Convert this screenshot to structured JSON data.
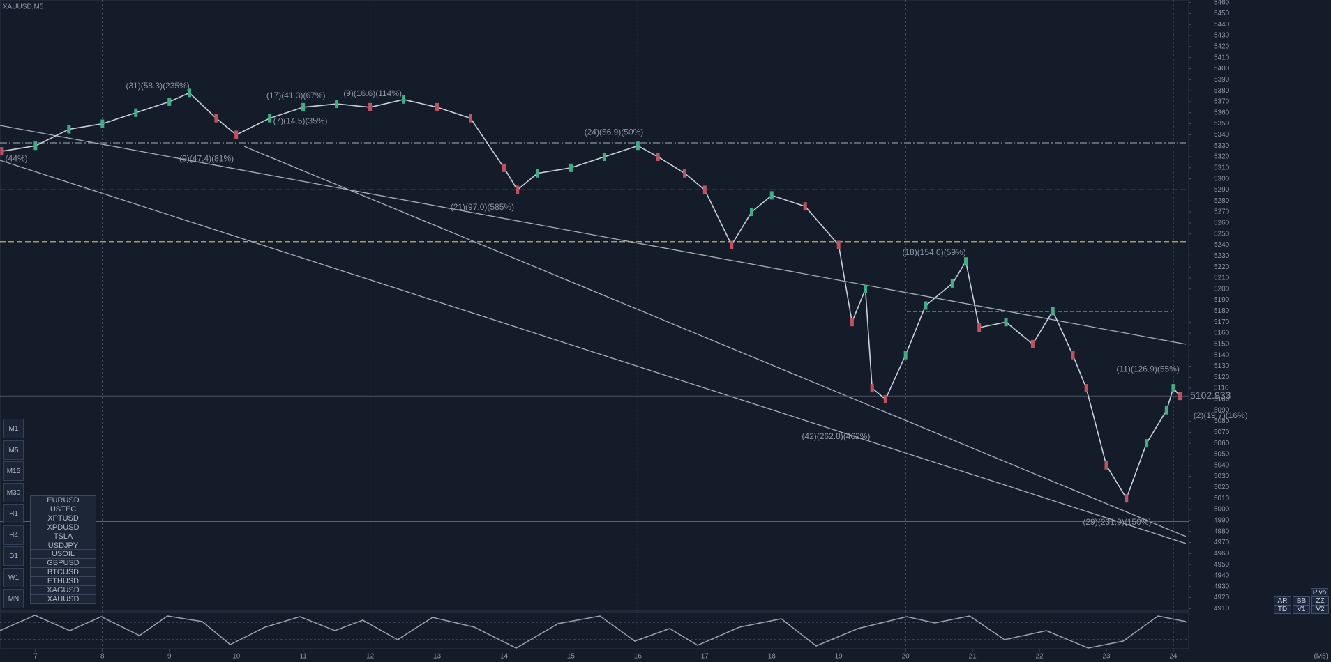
{
  "header": {
    "symbol": "XAUUSD,M5",
    "timeframe_tag": "(M5)"
  },
  "chart_data": {
    "type": "line",
    "series": [
      {
        "name": "XAUUSD",
        "color": "#c9d1dc",
        "x": [
          6.5,
          7.0,
          7.5,
          8.0,
          8.5,
          9.0,
          9.3,
          9.7,
          10.0,
          10.5,
          11.0,
          11.5,
          12.0,
          12.5,
          13.0,
          13.5,
          14.0,
          14.2,
          14.5,
          15.0,
          15.5,
          16.0,
          16.3,
          16.7,
          17.0,
          17.4,
          17.7,
          18.0,
          18.5,
          19.0,
          19.2,
          19.4,
          19.5,
          19.7,
          20.0,
          20.3,
          20.7,
          20.9,
          21.1,
          21.5,
          21.9,
          22.2,
          22.5,
          22.7,
          23.0,
          23.3,
          23.6,
          23.9,
          24.0,
          24.1
        ],
        "values": [
          5325,
          5330,
          5345,
          5350,
          5360,
          5370,
          5378,
          5355,
          5340,
          5355,
          5365,
          5368,
          5365,
          5372,
          5365,
          5355,
          5310,
          5290,
          5305,
          5310,
          5320,
          5330,
          5320,
          5305,
          5290,
          5240,
          5270,
          5285,
          5275,
          5240,
          5170,
          5200,
          5110,
          5100,
          5140,
          5185,
          5205,
          5225,
          5165,
          5170,
          5150,
          5180,
          5140,
          5110,
          5040,
          5010,
          5060,
          5090,
          5110,
          5103
        ]
      }
    ],
    "current_price": {
      "value": 5102.933,
      "label": "5102.933"
    },
    "levels": [
      {
        "value": 5290,
        "color": "#d4c73a"
      },
      {
        "value": 5243,
        "color": "#b9b86a"
      },
      {
        "value": 4989,
        "color": "#c0384b"
      }
    ],
    "vlines": [
      8,
      12,
      16,
      20,
      24
    ],
    "xlim": [
      6.47,
      24.23
    ],
    "xticks": [
      7,
      8,
      9,
      10,
      11,
      12,
      13,
      14,
      15,
      16,
      17,
      18,
      19,
      20,
      21,
      22,
      23,
      24
    ],
    "ylim": [
      4907.7,
      5462.3
    ],
    "yticks": [
      4910,
      4920,
      4930,
      4940,
      4950,
      4960,
      4970,
      4980,
      4990,
      5000,
      5010,
      5020,
      5030,
      5040,
      5050,
      5060,
      5070,
      5080,
      5090,
      5100,
      5110,
      5120,
      5130,
      5140,
      5150,
      5160,
      5170,
      5180,
      5190,
      5200,
      5210,
      5220,
      5230,
      5240,
      5250,
      5260,
      5270,
      5280,
      5290,
      5300,
      5310,
      5320,
      5330,
      5340,
      5350,
      5360,
      5370,
      5380,
      5390,
      5400,
      5410,
      5420,
      5430,
      5440,
      5450,
      5460
    ],
    "annotations": [
      {
        "text": "(44%)",
        "x": 6.55,
        "y": 5318
      },
      {
        "text": "(31)(58.3)(235%)",
        "x": 8.35,
        "y": 5384
      },
      {
        "text": "(9)(47.4)(81%)",
        "x": 9.15,
        "y": 5318
      },
      {
        "text": "(17)(41.3)(67%)",
        "x": 10.45,
        "y": 5375
      },
      {
        "text": "(9)(16.6)(114%)",
        "x": 11.6,
        "y": 5377
      },
      {
        "text": "(7)(14.5)(35%)",
        "x": 10.55,
        "y": 5352
      },
      {
        "text": "(21)(97.0)(585%)",
        "x": 13.2,
        "y": 5274
      },
      {
        "text": "(24)(56.9)(50%)",
        "x": 15.2,
        "y": 5342
      },
      {
        "text": "(42)(262.8)(462%)",
        "x": 18.45,
        "y": 5066
      },
      {
        "text": "(18)(154.0)(59%)",
        "x": 19.95,
        "y": 5233
      },
      {
        "text": "(29)(231.0)(150%)",
        "x": 22.65,
        "y": 4988
      },
      {
        "text": "(11)(126.9)(55%)",
        "x": 23.15,
        "y": 5127
      },
      {
        "text": "(2)(19.7)(16%)",
        "x": 24.3,
        "y": 5085
      }
    ]
  },
  "symbols": [
    "EURUSD",
    "USTEC",
    "XPTUSD",
    "XPDUSD",
    "TSLA",
    "USDJPY",
    "USOIL",
    "GBPUSD",
    "BTCUSD",
    "ETHUSD",
    "XAGUSD",
    "XAUUSD"
  ],
  "timeframes": [
    "M1",
    "M5",
    "M15",
    "M30",
    "H1",
    "H4",
    "D1",
    "W1",
    "MN"
  ],
  "buttons": [
    "Pivo",
    "AR",
    "BB",
    "ZZ",
    "TD",
    "V1",
    "V2"
  ]
}
